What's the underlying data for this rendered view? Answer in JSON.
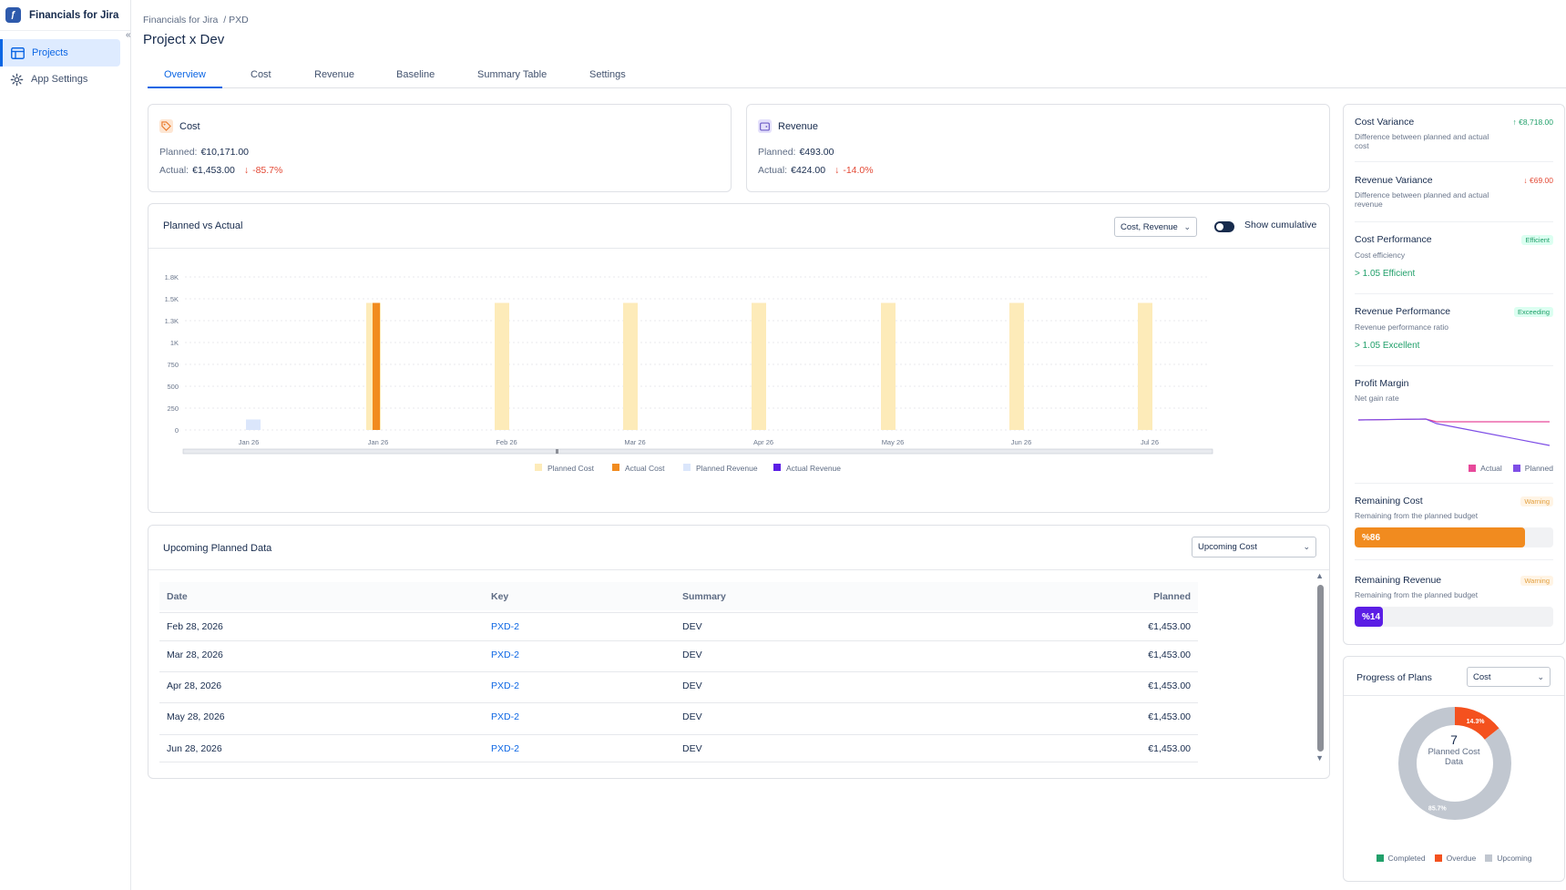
{
  "app": {
    "title": "Financials for Jira",
    "logo_text": "ƒ"
  },
  "sidebar": {
    "items": [
      {
        "label": "Projects",
        "icon": "table-icon",
        "active": true
      },
      {
        "label": "App Settings",
        "icon": "gear-icon",
        "active": false
      }
    ]
  },
  "breadcrumb": {
    "root": "Financials for Jira",
    "current": "/ PXD"
  },
  "page": {
    "title": "Project x Dev"
  },
  "tabs": [
    "Overview",
    "Cost",
    "Revenue",
    "Baseline",
    "Summary Table",
    "Settings"
  ],
  "cost_card": {
    "title": "Cost",
    "planned_label": "Planned:",
    "planned_value": "€10,171.00",
    "actual_label": "Actual:",
    "actual_value": "€1,453.00",
    "change": "-85.7%"
  },
  "revenue_card": {
    "title": "Revenue",
    "planned_label": "Planned:",
    "planned_value": "€493.00",
    "actual_label": "Actual:",
    "actual_value": "€424.00",
    "change": "-14.0%"
  },
  "chart_panel": {
    "title": "Planned vs Actual",
    "select_value": "Cost, Revenue",
    "toggle_label": "Show cumulative"
  },
  "chart_data": {
    "type": "bar",
    "categories": [
      "Jan 26",
      "Jan 26",
      "Feb 26",
      "Mar 26",
      "Apr 26",
      "May 26",
      "Jun 26",
      "Jul 26"
    ],
    "yticks": [
      "1.8K",
      "1.5K",
      "1.3K",
      "1K",
      "750",
      "500",
      "250",
      "0"
    ],
    "ylim": [
      0,
      1750
    ],
    "series": [
      {
        "name": "Planned Cost",
        "color": "#fdebb9",
        "values": [
          0,
          1453,
          1453,
          1453,
          1453,
          1453,
          1453,
          1453
        ]
      },
      {
        "name": "Actual Cost",
        "color": "#f18b1f",
        "values": [
          0,
          1453,
          0,
          0,
          0,
          0,
          0,
          0
        ]
      },
      {
        "name": "Planned Revenue",
        "color": "#dbe6fb",
        "values": [
          120,
          0,
          0,
          0,
          0,
          0,
          0,
          0
        ]
      },
      {
        "name": "Actual Revenue",
        "color": "#5b1ee5",
        "values": [
          0,
          0,
          0,
          0,
          0,
          0,
          0,
          0
        ]
      }
    ],
    "grid": true,
    "legend": "bottom"
  },
  "upcoming": {
    "title": "Upcoming Planned Data",
    "select_value": "Upcoming Cost",
    "columns": [
      "Date",
      "Key",
      "Summary",
      "Planned"
    ],
    "rows": [
      {
        "date": "Feb 28, 2026",
        "key": "PXD-2",
        "summary": "DEV",
        "planned": "€1,453.00"
      },
      {
        "date": "Mar 28, 2026",
        "key": "PXD-2",
        "summary": "DEV",
        "planned": "€1,453.00"
      },
      {
        "date": "Apr 28, 2026",
        "key": "PXD-2",
        "summary": "DEV",
        "planned": "€1,453.00"
      },
      {
        "date": "May 28, 2026",
        "key": "PXD-2",
        "summary": "DEV",
        "planned": "€1,453.00"
      },
      {
        "date": "Jun 28, 2026",
        "key": "PXD-2",
        "summary": "DEV",
        "planned": "€1,453.00"
      }
    ]
  },
  "metrics": {
    "cost_variance": {
      "title": "Cost Variance",
      "value": "€8,718.00",
      "sub": "Difference between planned and actual cost"
    },
    "revenue_variance": {
      "title": "Revenue Variance",
      "value": "€69.00",
      "sub": "Difference between planned and actual revenue"
    },
    "cost_performance": {
      "title": "Cost Performance",
      "badge": "Efficient",
      "sub": "Cost efficiency",
      "detail": "> 1.05 Efficient"
    },
    "revenue_performance": {
      "title": "Revenue Performance",
      "badge": "Exceeding",
      "sub": "Revenue performance ratio",
      "detail": "> 1.05 Excellent"
    },
    "profit_margin": {
      "title": "Profit Margin",
      "sub": "Net gain rate",
      "legend_actual": "Actual",
      "legend_planned": "Planned"
    },
    "remaining_cost": {
      "title": "Remaining Cost",
      "badge": "Warning",
      "sub": "Remaining from the planned budget",
      "label": "%86",
      "percent": 86
    },
    "remaining_revenue": {
      "title": "Remaining Revenue",
      "badge": "Warning",
      "sub": "Remaining from the planned budget",
      "label": "%14",
      "percent": 14
    }
  },
  "progress": {
    "title": "Progress of Plans",
    "select_value": "Cost",
    "center_count": "7",
    "center_label_1": "Planned Cost",
    "center_label_2": "Data",
    "slices": [
      {
        "name": "Overdue",
        "percent": 14.3,
        "label": "14.3%",
        "color": "#f4511e"
      },
      {
        "name": "Upcoming",
        "percent": 85.7,
        "label": "85.7%",
        "color": "#c1c7d0"
      }
    ],
    "legend": [
      "Completed",
      "Overdue",
      "Upcoming"
    ],
    "legend_colors": [
      "#22a06b",
      "#f4511e",
      "#c1c7d0"
    ]
  }
}
